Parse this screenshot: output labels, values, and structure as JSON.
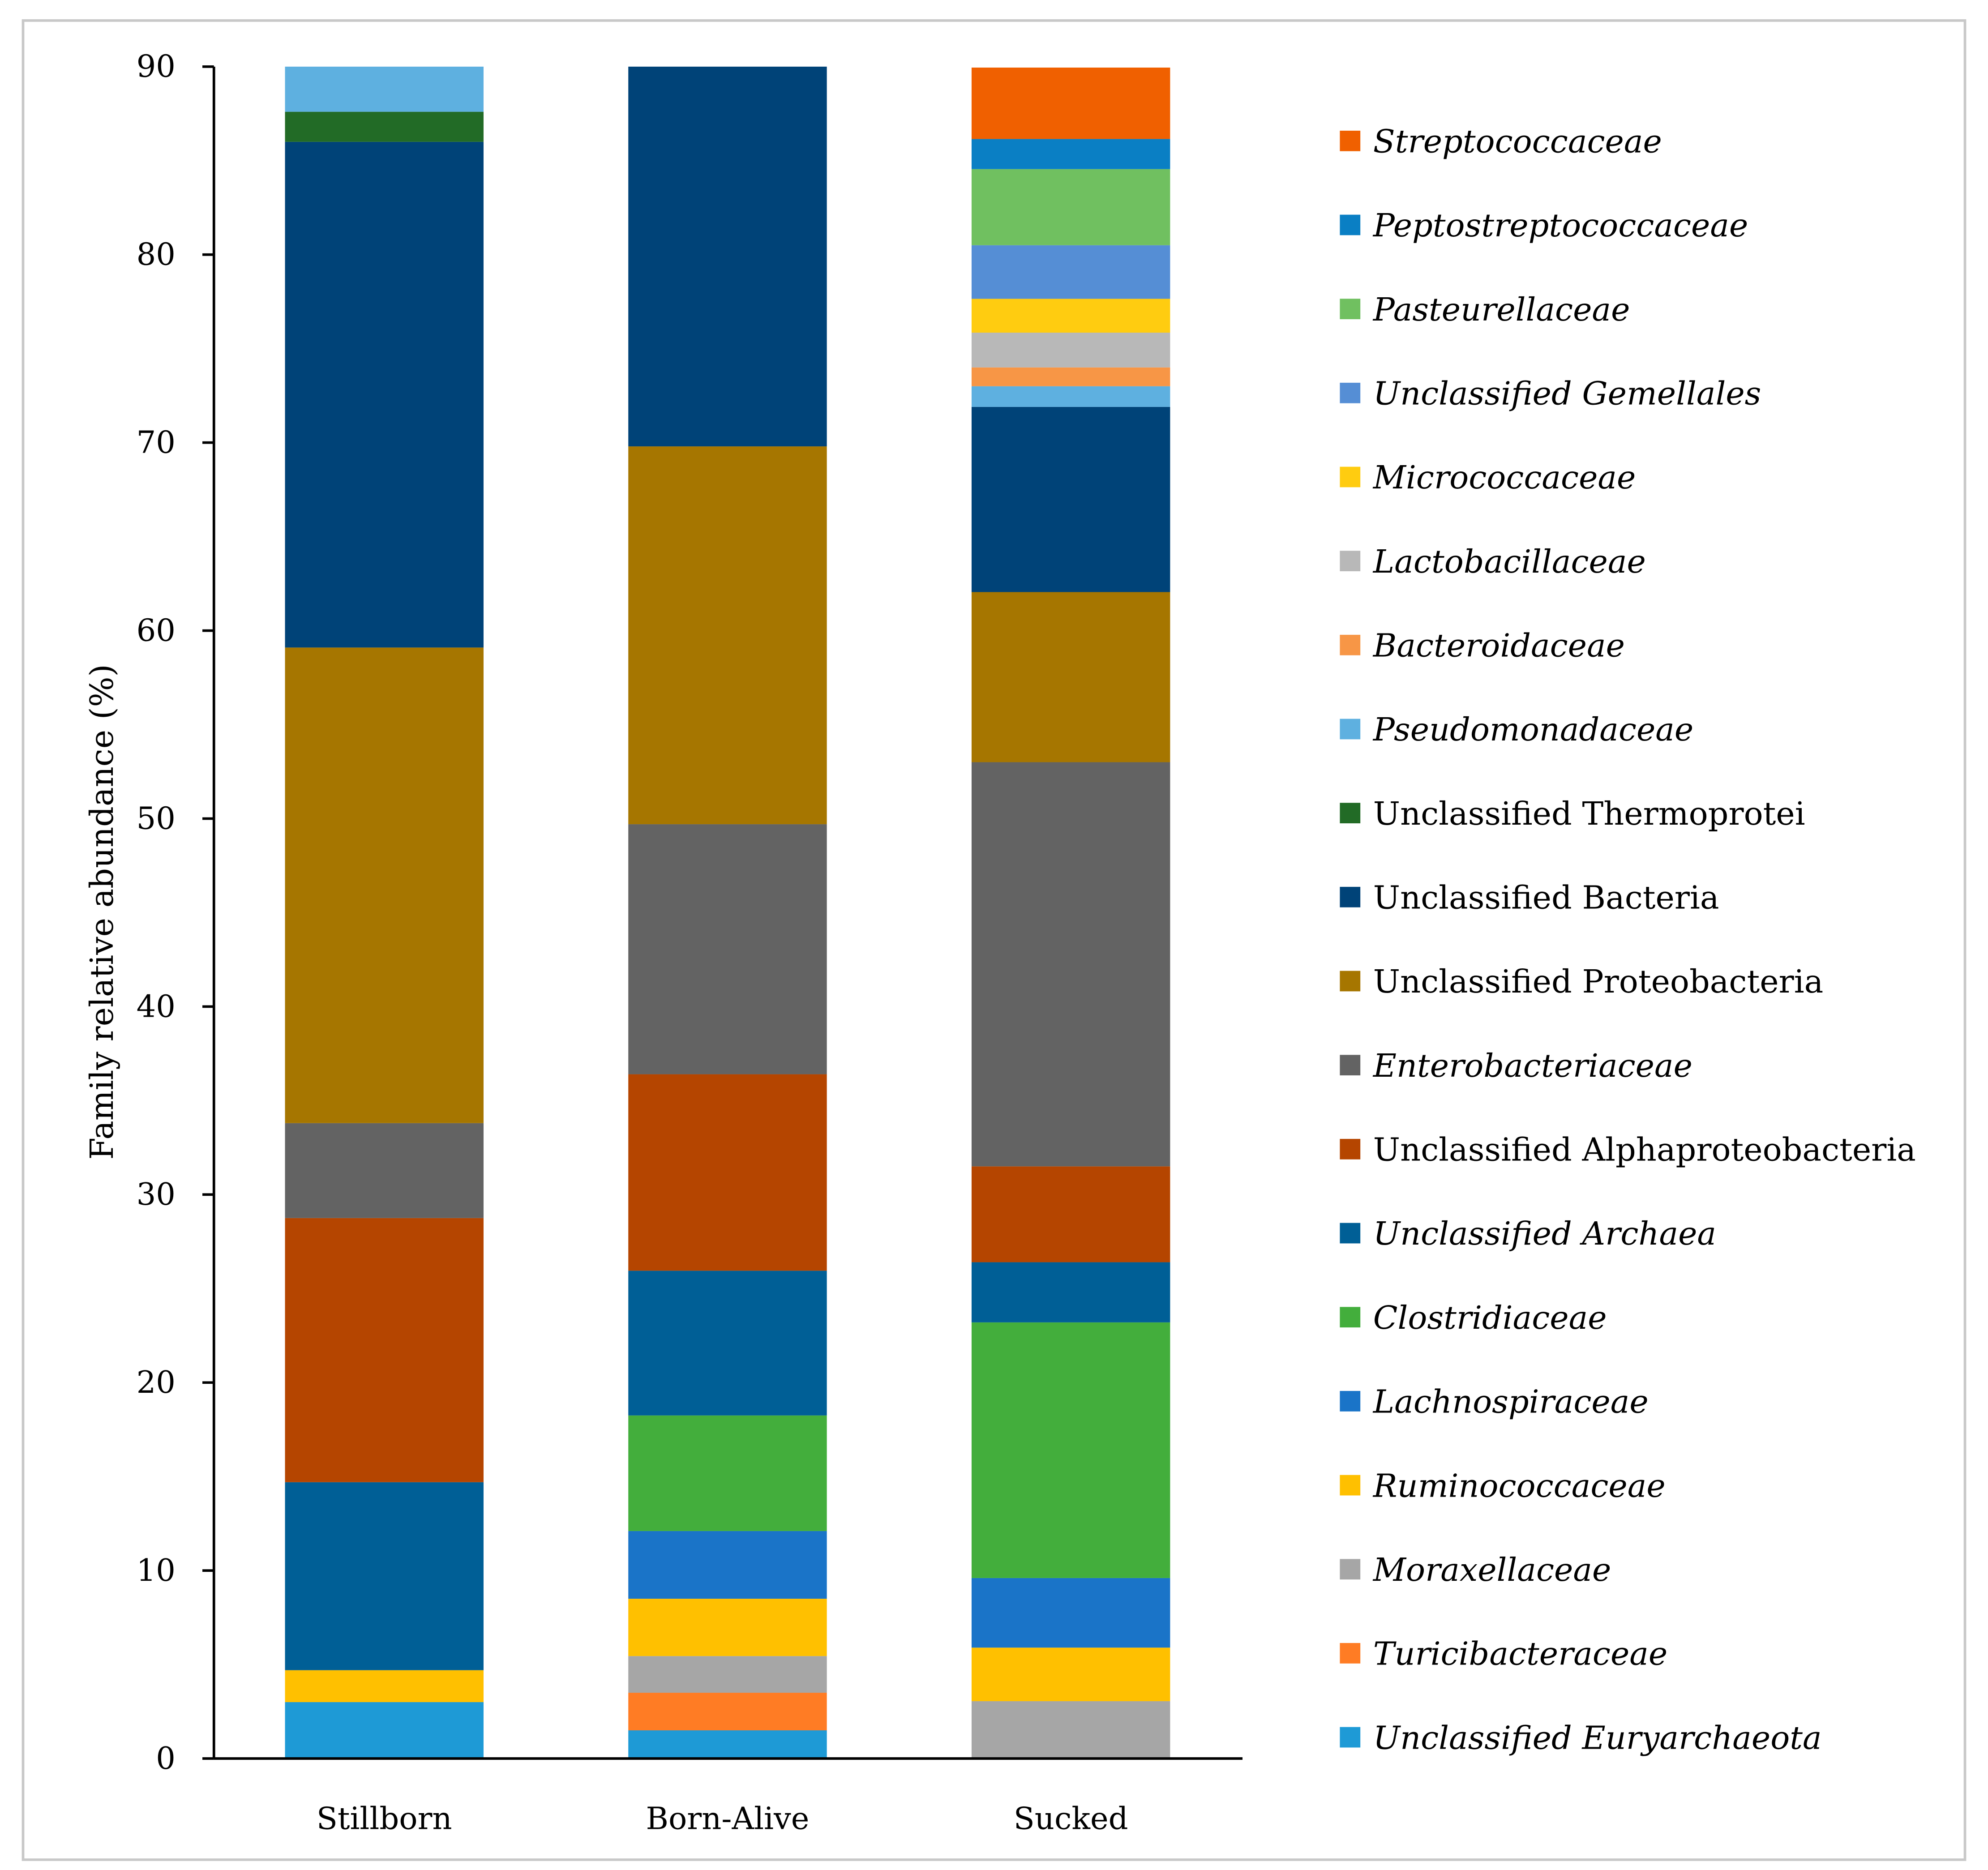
{
  "chart_data": {
    "type": "bar",
    "stacked": true,
    "title": "",
    "xlabel": "",
    "ylabel": "Family relative abundance (%)",
    "ylim": [
      0,
      90
    ],
    "yticks": [
      0,
      10,
      20,
      30,
      40,
      50,
      60,
      70,
      80,
      90
    ],
    "grid": false,
    "legend_position": "right",
    "categories": [
      "Stillborn",
      "Born-Alive",
      "Sucked"
    ],
    "series": [
      {
        "name": "Unclassified Euryarchaeota",
        "italic": true,
        "color": "#1e9ad6",
        "values": [
          3.0,
          1.5,
          0
        ]
      },
      {
        "name": "Turicibacteraceae",
        "italic": true,
        "color": "#ff7c24",
        "values": [
          0,
          2.0,
          0
        ]
      },
      {
        "name": "Moraxellaceae",
        "italic": true,
        "color": "#a6a6a6",
        "values": [
          0,
          1.95,
          3.05
        ]
      },
      {
        "name": "Ruminococcaceae",
        "italic": true,
        "color": "#ffc000",
        "values": [
          1.7,
          3.05,
          2.85
        ]
      },
      {
        "name": "Lachnospiraceae",
        "italic": true,
        "color": "#1a74c8",
        "values": [
          0,
          3.6,
          3.7
        ]
      },
      {
        "name": "Clostridiaceae",
        "italic": true,
        "color": "#43ae3c",
        "values": [
          0,
          6.15,
          13.6
        ]
      },
      {
        "name": "Unclassified Archaea",
        "italic": true,
        "color": "#005f96",
        "values": [
          10.0,
          7.7,
          3.2
        ]
      },
      {
        "name": "Unclassified Alphaproteobacteria",
        "italic": false,
        "color": "#b54500",
        "values": [
          14.05,
          10.45,
          5.1
        ]
      },
      {
        "name": "Enterobacteriaceae",
        "italic": true,
        "color": "#636363",
        "values": [
          5.05,
          13.3,
          21.5
        ]
      },
      {
        "name": "Unclassified Proteobacteria",
        "italic": false,
        "color": "#a67600",
        "values": [
          25.3,
          20.1,
          9.05
        ]
      },
      {
        "name": "Unclassified Bacteria",
        "italic": false,
        "color": "#004378",
        "values": [
          26.9,
          20.2,
          9.85
        ]
      },
      {
        "name": "Unclassified Thermoprotei",
        "italic": false,
        "color": "#226b26",
        "values": [
          1.6,
          0,
          0
        ]
      },
      {
        "name": "Pseudomonadaceae",
        "italic": true,
        "color": "#5eb0e0",
        "values": [
          2.4,
          0,
          1.1
        ]
      },
      {
        "name": "Bacteroidaceae",
        "italic": true,
        "color": "#f79646",
        "values": [
          0,
          0,
          1.0
        ]
      },
      {
        "name": "Lactobacillaceae",
        "italic": true,
        "color": "#b8b8b8",
        "values": [
          0,
          0,
          1.85
        ]
      },
      {
        "name": "Micrococcaceae",
        "italic": true,
        "color": "#ffcc10",
        "values": [
          0,
          0,
          1.8
        ]
      },
      {
        "name": "Unclassified Gemellales",
        "italic": true,
        "color": "#558ed5",
        "values": [
          0,
          0,
          2.85
        ]
      },
      {
        "name": "Pasteurellaceae",
        "italic": true,
        "color": "#70c060",
        "values": [
          0,
          0,
          4.05
        ]
      },
      {
        "name": "Peptostreptococcaceae",
        "italic": true,
        "color": "#0a7fc4",
        "values": [
          0,
          0,
          1.6
        ]
      },
      {
        "name": "Streptococcaceae",
        "italic": true,
        "color": "#f06000",
        "values": [
          0,
          0,
          3.8
        ]
      }
    ]
  }
}
